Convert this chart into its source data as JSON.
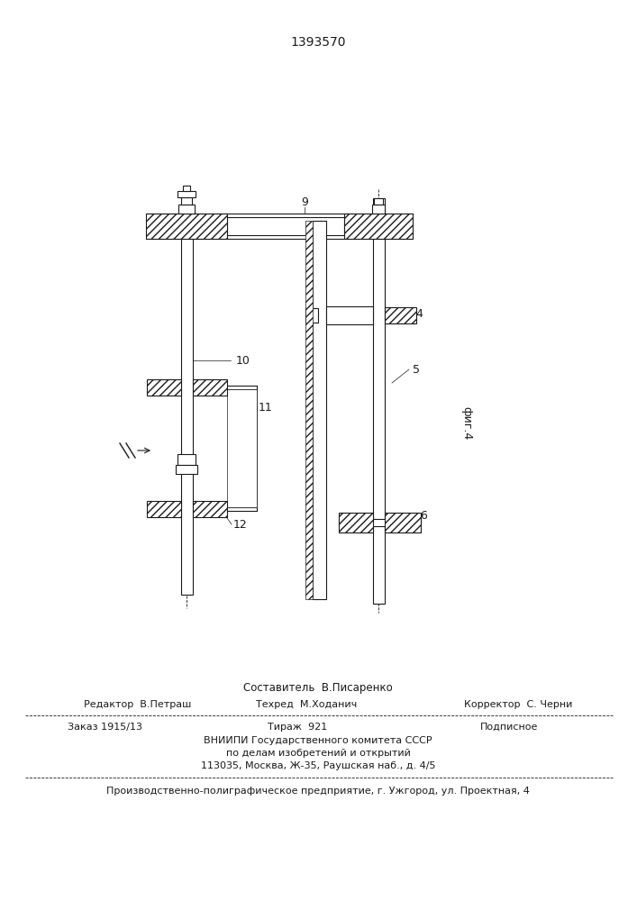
{
  "patent_number": "1393570",
  "fig_label": "фиг.4",
  "compositor": "Составитель  В.Писаренко",
  "editor": "Редактор  В.Петраш",
  "techred": "Техред  М.Ходанич",
  "corrector": "Корректор  С. Черни",
  "order": "Заказ 1915/13",
  "circulation": "Тираж  921",
  "subscription": "Подписное",
  "vniipи": "ВНИИПИ Государственного комитета СССР",
  "vniipи2": "по делам изобретений и открытий",
  "address": "113035, Москва, Ж-35, Раушская наб., д. 4/5",
  "factory": "Производственно-полиграфическое предприятие, г. Ужгород, ул. Проектная, 4",
  "bg_color": "#ffffff",
  "line_color": "#1a1a1a"
}
